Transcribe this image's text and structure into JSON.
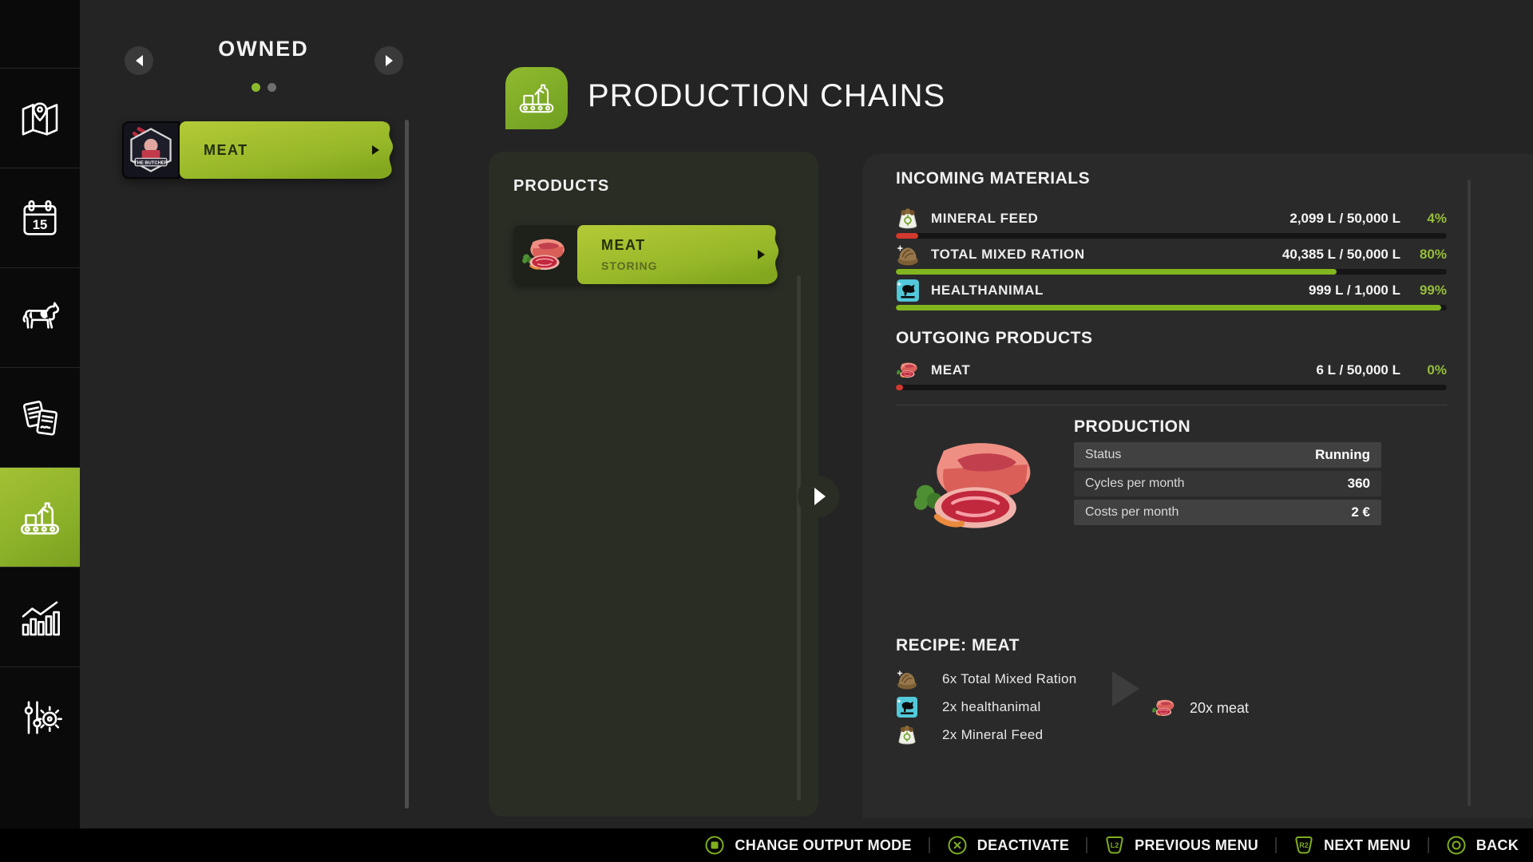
{
  "colors": {
    "accent": "#8cba2b",
    "bar_green": "#82b61f",
    "bar_red": "#d2392e"
  },
  "sidebar": {
    "icons": [
      "map-icon",
      "calendar-icon",
      "animals-icon",
      "contracts-icon",
      "production-chains-icon",
      "statistics-icon",
      "settings-icon"
    ],
    "active": "production-chains",
    "calendar_day": "15"
  },
  "owned": {
    "title": "OWNED",
    "items": [
      {
        "label": "MEAT"
      }
    ]
  },
  "header": {
    "title": "PRODUCTION CHAINS"
  },
  "products": {
    "title": "PRODUCTS",
    "items": [
      {
        "name": "MEAT",
        "status": "STORING"
      }
    ]
  },
  "incoming": {
    "title": "INCOMING MATERIALS",
    "rows": [
      {
        "icon": "mineral-feed-icon",
        "name": "MINERAL FEED",
        "value": "2,099 L / 50,000 L",
        "percent": "4%",
        "fill": 4,
        "bar_color": "#d2392e"
      },
      {
        "icon": "total-mixed-ration-icon",
        "name": "TOTAL MIXED RATION",
        "value": "40,385 L / 50,000 L",
        "percent": "80%",
        "fill": 80,
        "bar_color": "#82b61f"
      },
      {
        "icon": "healthanimal-icon",
        "name": "HEALTHANIMAL",
        "value": "999 L / 1,000 L",
        "percent": "99%",
        "fill": 99,
        "bar_color": "#82b61f"
      }
    ]
  },
  "outgoing": {
    "title": "OUTGOING PRODUCTS",
    "rows": [
      {
        "icon": "meat-icon",
        "name": "MEAT",
        "value": "6 L / 50,000 L",
        "percent": "0%",
        "fill": 1.3,
        "bar_color": "#d2392e"
      }
    ]
  },
  "production": {
    "title": "PRODUCTION",
    "rows": [
      {
        "label": "Status",
        "value": "Running"
      },
      {
        "label": "Cycles per month",
        "value": "360"
      },
      {
        "label": "Costs per month",
        "value": "2 €"
      }
    ]
  },
  "recipe": {
    "title": "RECIPE: MEAT",
    "inputs": [
      {
        "icon": "total-mixed-ration-icon",
        "label": "6x Total Mixed Ration"
      },
      {
        "icon": "healthanimal-icon",
        "label": "2x healthanimal"
      },
      {
        "icon": "mineral-feed-icon",
        "label": "2x Mineral Feed"
      }
    ],
    "output": {
      "icon": "meat-icon",
      "label": "20x meat"
    }
  },
  "footer": {
    "buttons": [
      {
        "icon": "square-button-icon",
        "label": "CHANGE OUTPUT MODE"
      },
      {
        "icon": "x-button-icon",
        "label": "DEACTIVATE"
      },
      {
        "icon": "l2-button-icon",
        "key": "L2",
        "label": "PREVIOUS MENU"
      },
      {
        "icon": "r2-button-icon",
        "key": "R2",
        "label": "NEXT MENU"
      },
      {
        "icon": "circle-button-icon",
        "label": "BACK"
      }
    ]
  }
}
